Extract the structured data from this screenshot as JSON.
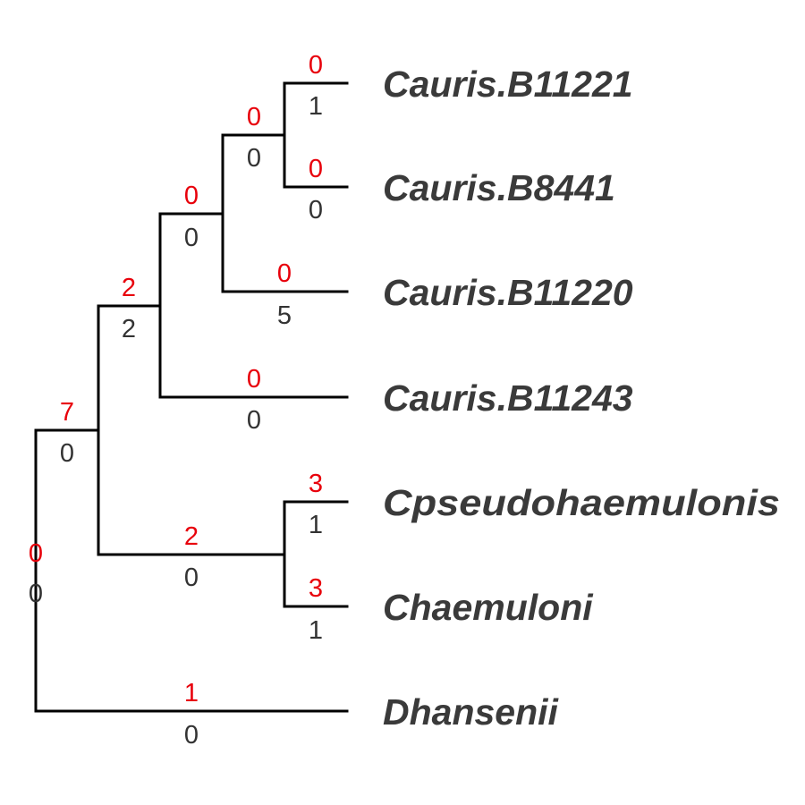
{
  "tree": {
    "gain_color": "#e8000b",
    "loss_color": "#333333",
    "branch_color": "#000000",
    "tips": [
      "Cauris.B11221",
      "Cauris.B8441",
      "Cauris.B11220",
      "Cauris.B11243",
      "Cpseudohaemulonis",
      "Chaemuloni",
      "Dhansenii"
    ],
    "branch_labels": {
      "cauris_b11221": {
        "gain": "0",
        "loss": "1"
      },
      "cauris_b8441": {
        "gain": "0",
        "loss": "0"
      },
      "node_b11221_b8441": {
        "gain": "0",
        "loss": "0"
      },
      "cauris_b11220": {
        "gain": "0",
        "loss": "5"
      },
      "node_b11220_group": {
        "gain": "0",
        "loss": "0"
      },
      "cauris_b11243": {
        "gain": "0",
        "loss": "0"
      },
      "node_cauris": {
        "gain": "2",
        "loss": "2"
      },
      "cpseudohaemulonis": {
        "gain": "3",
        "loss": "1"
      },
      "chaemuloni": {
        "gain": "3",
        "loss": "1"
      },
      "node_haemulonii": {
        "gain": "2",
        "loss": "0"
      },
      "node_candida": {
        "gain": "7",
        "loss": "0"
      },
      "dhansenii": {
        "gain": "1",
        "loss": "0"
      },
      "root": {
        "gain": "0",
        "loss": "0"
      }
    }
  }
}
